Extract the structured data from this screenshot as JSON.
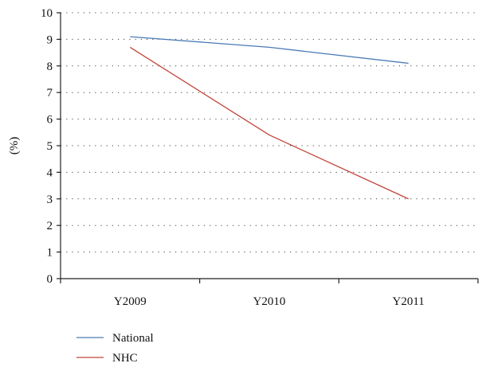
{
  "chart_data": {
    "type": "line",
    "title": "",
    "xlabel": "",
    "ylabel": "(%)",
    "ylim": [
      0,
      10
    ],
    "yticks": [
      0,
      1,
      2,
      3,
      4,
      5,
      6,
      7,
      8,
      9,
      10
    ],
    "categories": [
      "Y2009",
      "Y2010",
      "Y2011"
    ],
    "grid": "horizontal-dotted",
    "legend_position": "bottom-left",
    "series": [
      {
        "name": "National",
        "color": "#4a7ab5",
        "values": [
          9.1,
          8.7,
          8.1
        ]
      },
      {
        "name": "NHC",
        "color": "#c0443a",
        "values": [
          8.7,
          5.4,
          3.0
        ]
      }
    ]
  }
}
